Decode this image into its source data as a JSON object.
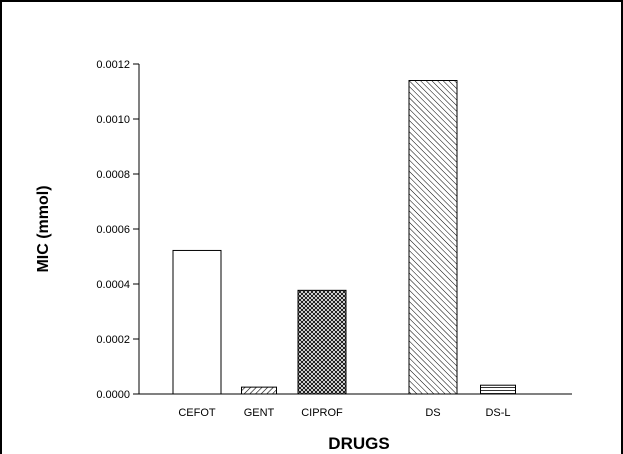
{
  "chart_data": {
    "type": "bar",
    "title": "",
    "xlabel": "DRUGS",
    "ylabel": "MIC (mmol)",
    "categories": [
      "CEFOT",
      "GENT",
      "CIPROF",
      "DS",
      "DS-L"
    ],
    "values": [
      0.000522,
      2.5e-05,
      0.000377,
      0.00114,
      3.2e-05
    ],
    "ylim": [
      0,
      0.0012
    ],
    "yticks": [
      "0.0000",
      "0.0002",
      "0.0004",
      "0.0006",
      "0.0008",
      "0.0010",
      "0.0012"
    ],
    "bar_fills": [
      "solid-white",
      "diagonal-hatch",
      "crosshatch",
      "diagonal-hatch-dense",
      "horizontal-lines"
    ],
    "grid": false,
    "legend": "none"
  }
}
